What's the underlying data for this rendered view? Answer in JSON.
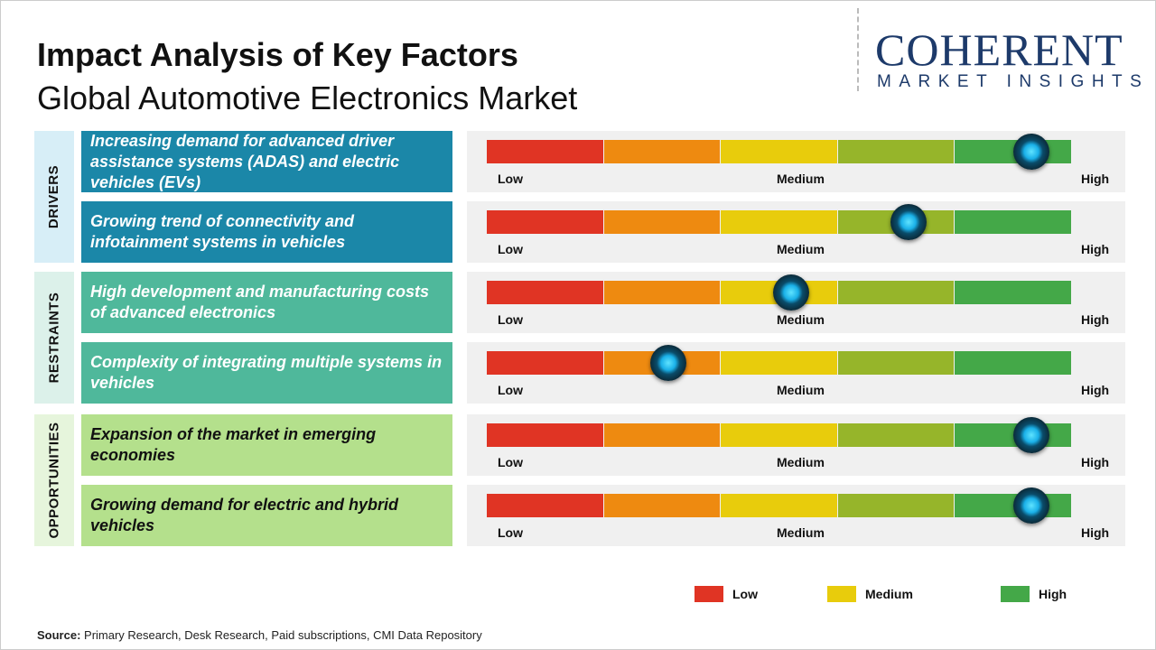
{
  "title": "Impact Analysis of Key Factors",
  "subtitle": "Global Automotive Electronics Market",
  "logo": {
    "line1": "COHERENT",
    "line2": "MARKET INSIGHTS"
  },
  "chart_data": {
    "type": "gauge-table",
    "scale_labels": [
      "Low",
      "Medium",
      "High"
    ],
    "segment_colors": [
      "#e03424",
      "#ee8a10",
      "#e8cc0c",
      "#96b52a",
      "#44a848"
    ],
    "groups": [
      {
        "name": "DRIVERS",
        "box_color": "#1b87a8",
        "side_color": "#d7eef7",
        "text_color": "#ffffff",
        "factors": [
          {
            "text": "Increasing demand for advanced driver assistance systems (ADAS) and electric vehicles (EVs)",
            "impact": 0.93
          },
          {
            "text": "Growing trend of connectivity and infotainment systems in vehicles",
            "impact": 0.72
          }
        ]
      },
      {
        "name": "RESTRAINTS",
        "box_color": "#4fb89b",
        "side_color": "#dcf1ea",
        "text_color": "#ffffff",
        "factors": [
          {
            "text": "High development and manufacturing costs of advanced electronics",
            "impact": 0.52
          },
          {
            "text": "Complexity of integrating multiple systems in vehicles",
            "impact": 0.31
          }
        ]
      },
      {
        "name": "OPPORTUNITIES",
        "box_color": "#b4e08c",
        "side_color": "#e6f5dc",
        "text_color": "#111111",
        "factors": [
          {
            "text": "Expansion of the market in emerging economies",
            "impact": 0.93
          },
          {
            "text": "Growing demand for electric and hybrid vehicles",
            "impact": 0.93
          }
        ]
      }
    ],
    "legend": [
      {
        "label": "Low",
        "color": "#e03424"
      },
      {
        "label": "Medium",
        "color": "#e8cc0c"
      },
      {
        "label": "High",
        "color": "#44a848"
      }
    ]
  },
  "source": {
    "label": "Source:",
    "text": " Primary Research, Desk Research, Paid subscriptions, CMI Data Repository"
  }
}
